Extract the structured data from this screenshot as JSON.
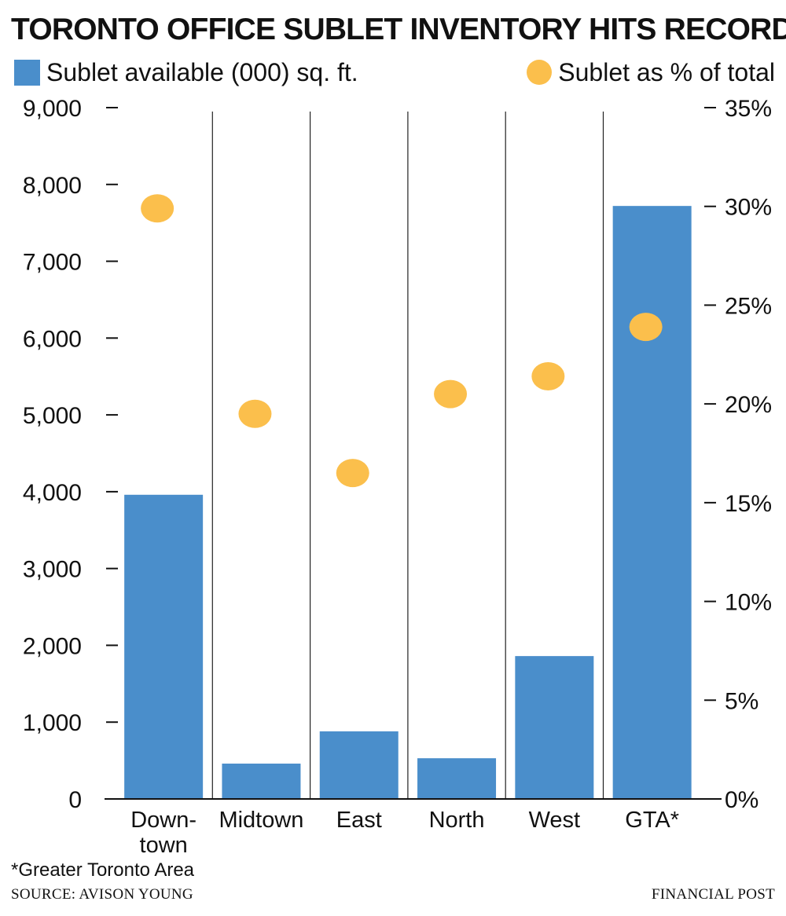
{
  "title": "TORONTO OFFICE SUBLET INVENTORY HITS RECORD",
  "legend": {
    "bars_label": "Sublet available (000) sq. ft.",
    "dots_label": "Sublet as % of total"
  },
  "colors": {
    "bar": "#4a8ecb",
    "dot": "#fbbf4c",
    "ink": "#111111"
  },
  "chart_data": {
    "type": "bar",
    "categories": [
      "Down-\ntown",
      "Midtown",
      "East",
      "North",
      "West",
      "GTA*"
    ],
    "series": [
      {
        "name": "Sublet available (000) sq. ft.",
        "type": "bar",
        "axis": "left",
        "values": [
          3960,
          460,
          880,
          530,
          1860,
          7720
        ]
      },
      {
        "name": "Sublet as % of total",
        "type": "scatter",
        "axis": "right",
        "values": [
          29.9,
          19.5,
          16.5,
          20.5,
          21.4,
          23.9
        ]
      }
    ],
    "y_left": {
      "ylim": [
        0,
        9000
      ],
      "ticks": [
        "0",
        "1,000",
        "2,000",
        "3,000",
        "4,000",
        "5,000",
        "6,000",
        "7,000",
        "8,000",
        "9,000"
      ]
    },
    "y_right": {
      "ylim": [
        0,
        35
      ],
      "ticks": [
        "0%",
        "5%",
        "10%",
        "15%",
        "20%",
        "25%",
        "30%",
        "35%"
      ]
    },
    "grid": false
  },
  "footnote": "*Greater Toronto Area",
  "source": "SOURCE: AVISON YOUNG",
  "publisher": "FINANCIAL POST"
}
